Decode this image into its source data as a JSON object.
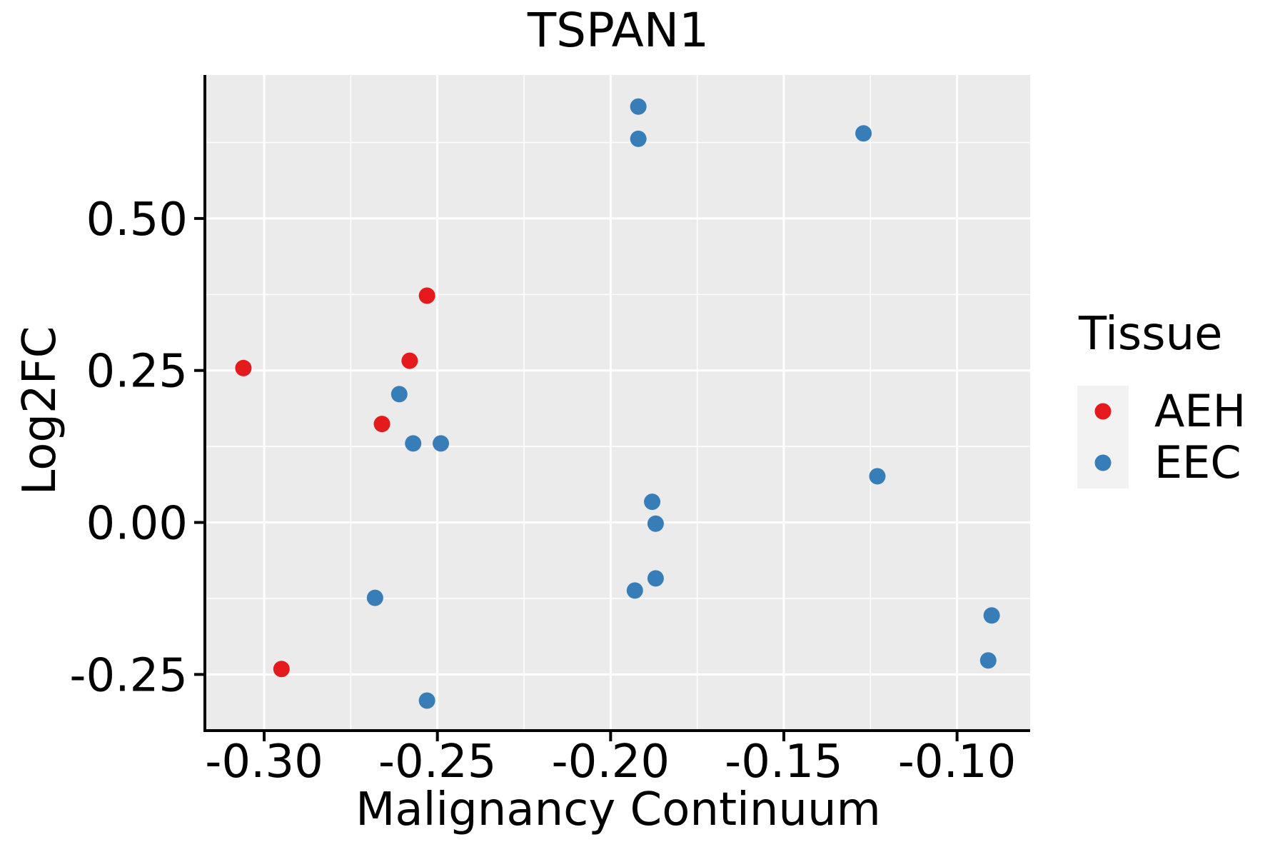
{
  "figure": {
    "background": "#FFFFFF"
  },
  "chart_data": {
    "type": "scatter",
    "title": "TSPAN1",
    "xlabel": "Malignancy Continuum",
    "ylabel": "Log2FC",
    "legend_title": "Tissue",
    "legend_position": "right",
    "grid": true,
    "panel_bg": "#EBEBEB",
    "grid_color": "#FFFFFF",
    "axis_color": "#000000",
    "text_color": "#000000",
    "legend_key_bg": "#F2F2F2",
    "xlim": [
      -0.3167,
      -0.0789
    ],
    "ylim": [
      -0.34,
      0.736
    ],
    "x_ticks": [
      -0.3,
      -0.25,
      -0.2,
      -0.15,
      -0.1
    ],
    "x_tick_labels": [
      "-0.30",
      "-0.25",
      "-0.20",
      "-0.15",
      "-0.10"
    ],
    "y_ticks": [
      0.5,
      0.25,
      0.0,
      -0.25
    ],
    "y_tick_labels": [
      "0.50",
      "0.25",
      "0.00",
      "-0.25"
    ],
    "x_minor_ticks": [
      -0.275,
      -0.225,
      -0.175,
      -0.125
    ],
    "y_minor_ticks": [
      0.625,
      0.375,
      0.125,
      -0.125
    ],
    "series": [
      {
        "name": "AEH",
        "color": "#E41A1C",
        "points": [
          [
            -0.306,
            0.254
          ],
          [
            -0.295,
            -0.241
          ],
          [
            -0.266,
            0.162
          ],
          [
            -0.258,
            0.266
          ],
          [
            -0.253,
            0.373
          ]
        ]
      },
      {
        "name": "EEC",
        "color": "#377EB8",
        "points": [
          [
            -0.261,
            0.211
          ],
          [
            -0.257,
            0.13
          ],
          [
            -0.249,
            0.13
          ],
          [
            -0.268,
            -0.124
          ],
          [
            -0.253,
            -0.293
          ],
          [
            -0.192,
            0.684
          ],
          [
            -0.192,
            0.631
          ],
          [
            -0.127,
            0.64
          ],
          [
            -0.123,
            0.076
          ],
          [
            -0.188,
            0.034
          ],
          [
            -0.187,
            -0.002
          ],
          [
            -0.187,
            -0.092
          ],
          [
            -0.193,
            -0.112
          ],
          [
            -0.09,
            -0.153
          ],
          [
            -0.091,
            -0.227
          ]
        ]
      }
    ]
  }
}
